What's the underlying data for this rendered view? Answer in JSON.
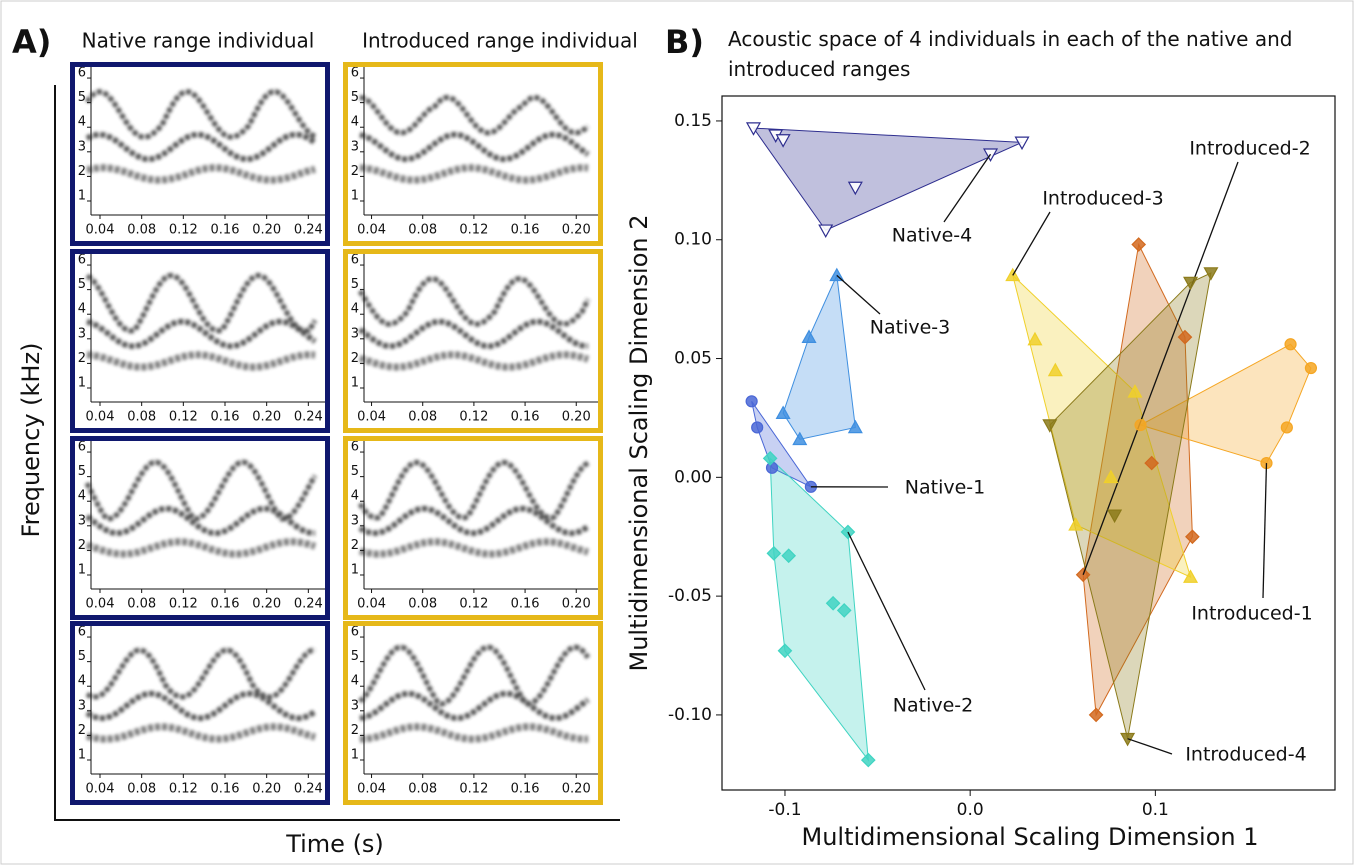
{
  "chart_data": [
    {
      "type": "spectrogram",
      "panel_label": "A)",
      "ylabel": "Frequency (kHz)",
      "xlabel": "Time (s)",
      "ylim": [
        0.43,
        6.49
      ],
      "yticks": [
        1,
        2,
        3,
        4,
        5,
        6
      ],
      "columns": [
        {
          "title": "Native range individual",
          "color": "#10186e",
          "xlim": [
            0.016,
            0.256
          ],
          "xticks": [
            0.04,
            0.08,
            0.12,
            0.16,
            {
              "value": 0.2,
              "label": "0.20"
            },
            0.24
          ]
        },
        {
          "title": "Introduced range individual",
          "color": "#e6b819",
          "xlim": [
            0.0216,
            0.217
          ],
          "xticks": [
            0.04,
            0.08,
            0.12,
            0.16,
            {
              "value": 0.2,
              "label": "0.20"
            }
          ]
        }
      ]
    },
    {
      "type": "scatter",
      "panel_label": "B)",
      "title": "Acoustic space of 4 individuals in each of the native and introduced ranges",
      "xlabel": "Multidimensional Scaling Dimension 1",
      "ylabel": "Multidimensional Scaling Dimension 2",
      "xlim": [
        -0.134,
        0.197
      ],
      "ylim": [
        -0.1316,
        0.1605
      ],
      "xticks": [
        -0.1,
        {
          "value": 0,
          "label": "0.0"
        },
        0.1
      ],
      "yticks": [
        {
          "value": -0.1,
          "label": "-0.10"
        },
        -0.05,
        {
          "value": 0,
          "label": "0.00"
        },
        0.05,
        {
          "value": 0.1,
          "label": "0.10"
        },
        0.15
      ],
      "series": [
        {
          "name": "Native-4",
          "color": "#2e2e8f",
          "marker": "tri-down-open",
          "x": [
            -0.117,
            -0.105,
            -0.101,
            -0.062,
            -0.078,
            0.011,
            0.028
          ],
          "values": [
            0.147,
            0.144,
            0.142,
            0.122,
            0.104,
            0.136,
            0.141
          ]
        },
        {
          "name": "Native-3",
          "color": "#3f8fe0",
          "marker": "tri-up",
          "x": [
            -0.072,
            -0.087,
            -0.101,
            -0.092,
            -0.062
          ],
          "values": [
            0.085,
            0.059,
            0.027,
            0.016,
            0.021
          ]
        },
        {
          "name": "Native-1",
          "color": "#4a67d6",
          "marker": "circle",
          "x": [
            -0.118,
            -0.115,
            -0.107,
            -0.086
          ],
          "values": [
            0.032,
            0.021,
            0.004,
            -0.004
          ]
        },
        {
          "name": "Native-2",
          "color": "#3fd4c2",
          "marker": "diamond",
          "x": [
            -0.108,
            -0.066,
            -0.106,
            -0.098,
            -0.074,
            -0.068,
            -0.1,
            -0.055
          ],
          "values": [
            0.008,
            -0.023,
            -0.032,
            -0.033,
            -0.053,
            -0.056,
            -0.073,
            -0.119
          ]
        },
        {
          "name": "Introduced-2",
          "color": "#d2691e",
          "marker": "diamond",
          "x": [
            0.091,
            0.116,
            0.098,
            0.12,
            0.061,
            0.068
          ],
          "values": [
            0.098,
            0.059,
            0.006,
            -0.025,
            -0.041,
            -0.1
          ]
        },
        {
          "name": "Introduced-1",
          "color": "#f5a623",
          "marker": "circle",
          "x": [
            0.173,
            0.184,
            0.171,
            0.16,
            0.092
          ],
          "values": [
            0.056,
            0.046,
            0.021,
            0.006,
            0.022
          ]
        },
        {
          "name": "Introduced-3",
          "color": "#f0d02a",
          "marker": "tri-up",
          "x": [
            0.023,
            0.035,
            0.046,
            0.089,
            0.076,
            0.057,
            0.119
          ],
          "values": [
            0.085,
            0.058,
            0.045,
            0.036,
            0,
            -0.02,
            -0.042
          ]
        },
        {
          "name": "Introduced-4",
          "color": "#8b7a1a",
          "marker": "tri-down",
          "x": [
            0.13,
            0.119,
            0.043,
            0.078,
            0.085
          ],
          "values": [
            0.086,
            0.082,
            0.022,
            -0.016,
            -0.11
          ]
        }
      ]
    }
  ]
}
